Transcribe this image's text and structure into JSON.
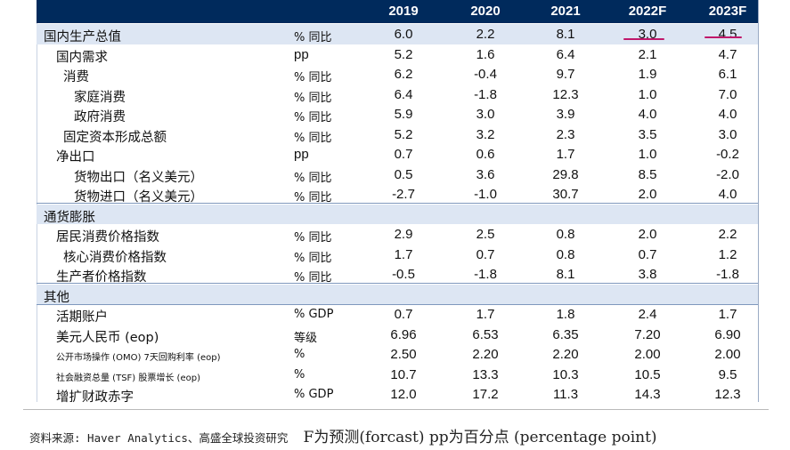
{
  "header": {
    "years": [
      "2019",
      "2020",
      "2021",
      "2022F",
      "2023F"
    ]
  },
  "rows": [
    {
      "label": "国内生产总值",
      "unit": "% 同比",
      "values": [
        "6.0",
        "2.2",
        "8.1",
        "3.0",
        "4.5"
      ]
    },
    {
      "label": "国内需求",
      "unit": "pp",
      "values": [
        "5.2",
        "1.6",
        "6.4",
        "2.1",
        "4.7"
      ]
    },
    {
      "label": "消费",
      "unit": "% 同比",
      "values": [
        "6.2",
        "-0.4",
        "9.7",
        "1.9",
        "6.1"
      ]
    },
    {
      "label": "家庭消费",
      "unit": "% 同比",
      "values": [
        "6.4",
        "-1.8",
        "12.3",
        "1.0",
        "7.0"
      ]
    },
    {
      "label": "政府消费",
      "unit": "% 同比",
      "values": [
        "5.9",
        "3.0",
        "3.9",
        "4.0",
        "4.0"
      ]
    },
    {
      "label": "固定资本形成总额",
      "unit": "% 同比",
      "values": [
        "5.2",
        "3.2",
        "2.3",
        "3.5",
        "3.0"
      ]
    },
    {
      "label": "净出口",
      "unit": "pp",
      "values": [
        "0.7",
        "0.6",
        "1.7",
        "1.0",
        "-0.2"
      ]
    },
    {
      "label": "货物出口（名义美元）",
      "unit": "% 同比",
      "values": [
        "0.5",
        "3.6",
        "29.8",
        "8.5",
        "-2.0"
      ]
    },
    {
      "label": "货物进口（名义美元）",
      "unit": "% 同比",
      "values": [
        "-2.7",
        "-1.0",
        "30.7",
        "2.0",
        "4.0"
      ]
    },
    {
      "label": "通货膨胀",
      "unit": "",
      "values": [
        "",
        "",
        "",
        "",
        ""
      ]
    },
    {
      "label": "居民消费价格指数",
      "unit": "% 同比",
      "values": [
        "2.9",
        "2.5",
        "0.8",
        "2.0",
        "2.2"
      ]
    },
    {
      "label": "核心消费价格指数",
      "unit": "% 同比",
      "values": [
        "1.7",
        "0.7",
        "0.8",
        "0.7",
        "1.2"
      ]
    },
    {
      "label": "生产者价格指数",
      "unit": "% 同比",
      "values": [
        "-0.5",
        "-1.8",
        "8.1",
        "3.8",
        "-1.8"
      ]
    },
    {
      "label": "其他",
      "unit": "",
      "values": [
        "",
        "",
        "",
        "",
        ""
      ]
    },
    {
      "label": "活期账户",
      "unit": "% GDP",
      "values": [
        "0.7",
        "1.7",
        "1.8",
        "2.4",
        "1.7"
      ]
    },
    {
      "label": "美元人民币 (eop)",
      "unit": "等级",
      "values": [
        "6.96",
        "6.53",
        "6.35",
        "7.20",
        "6.90"
      ]
    },
    {
      "label": "公开市场操作 (OMO) 7天回购利率 (eop)",
      "unit": "%",
      "values": [
        "2.50",
        "2.20",
        "2.20",
        "2.00",
        "2.00"
      ]
    },
    {
      "label": "社会融资总量 (TSF) 股票增长 (eop)",
      "unit": "%",
      "values": [
        "10.7",
        "13.3",
        "10.3",
        "10.5",
        "9.5"
      ]
    },
    {
      "label": "增扩财政赤字",
      "unit": "% GDP",
      "values": [
        "12.0",
        "17.2",
        "11.3",
        "14.3",
        "12.3"
      ]
    }
  ],
  "source": {
    "prefix": "资料来源: Haver Analytics、高盛全球投资研究",
    "note": "F为预测(forcast) pp为百分点 (percentage point)"
  },
  "colors": {
    "header_bg": "#002a5c",
    "shade": "#dde6f3",
    "annotation": "#c0186a"
  }
}
